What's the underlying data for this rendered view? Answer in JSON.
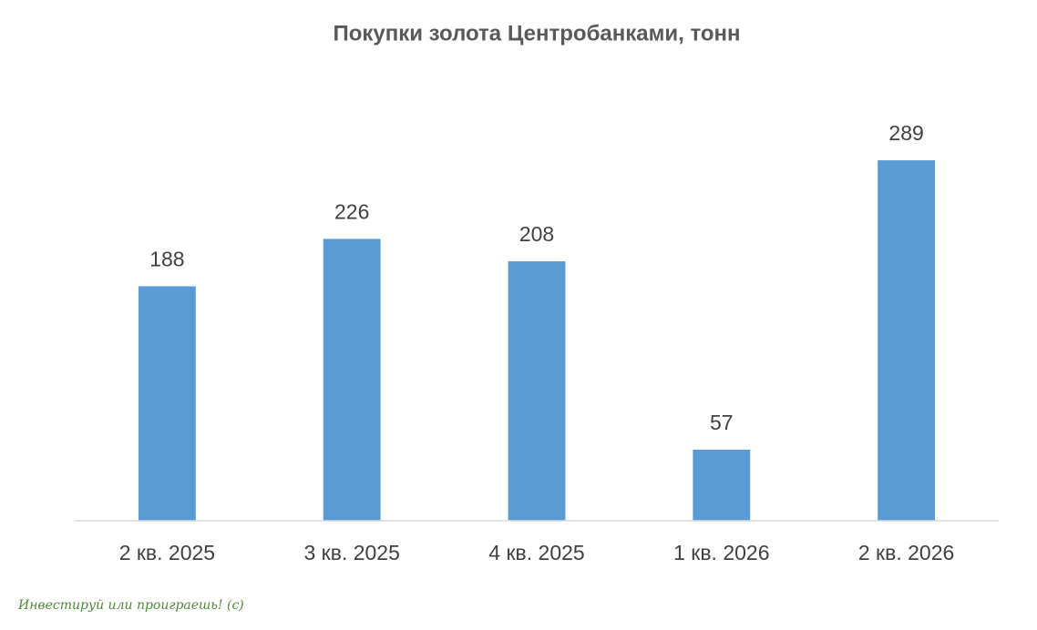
{
  "chart_data": {
    "type": "bar",
    "title": "Покупки золота Центробанками, тонн",
    "categories": [
      "2 кв. 2025",
      "3 кв. 2025",
      "4 кв. 2025",
      "1 кв. 2026",
      "2 кв. 2026"
    ],
    "values": [
      188,
      226,
      208,
      57,
      289
    ],
    "color": "#5b9bd5",
    "ylim": [
      0,
      320
    ],
    "grid": false,
    "annotation": "Инвестируй или проиграешь! (с)"
  }
}
